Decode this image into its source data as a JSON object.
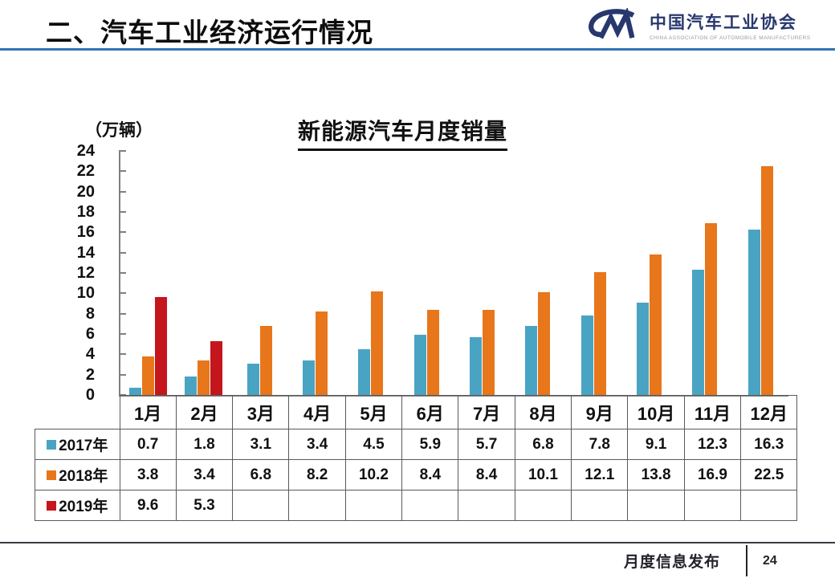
{
  "header": {
    "title": "二、汽车工业经济运行情况",
    "rule_color": "#2E74B5",
    "logo": {
      "mark": "CM",
      "org_cn": "中国汽车工业协会",
      "org_en": "CHINA ASSOCIATION OF AUTOMOBILE MANUFACTURERS",
      "color": "#28386E"
    }
  },
  "chart_data": {
    "type": "bar",
    "title": "新能源汽车月度销量",
    "unit_label": "（万辆）",
    "categories": [
      "1月",
      "2月",
      "3月",
      "4月",
      "5月",
      "6月",
      "7月",
      "8月",
      "9月",
      "10月",
      "11月",
      "12月"
    ],
    "series": [
      {
        "name": "2017年",
        "color": "#49A4C4",
        "values": [
          0.7,
          1.8,
          3.1,
          3.4,
          4.5,
          5.9,
          5.7,
          6.8,
          7.8,
          9.1,
          12.3,
          16.3
        ]
      },
      {
        "name": "2018年",
        "color": "#E8761B",
        "values": [
          3.8,
          3.4,
          6.8,
          8.2,
          10.2,
          8.4,
          8.4,
          10.1,
          12.1,
          13.8,
          16.9,
          22.5
        ]
      },
      {
        "name": "2019年",
        "color": "#C4161C",
        "values": [
          9.6,
          5.3,
          null,
          null,
          null,
          null,
          null,
          null,
          null,
          null,
          null,
          null
        ]
      }
    ],
    "ylim": [
      0,
      24
    ],
    "ytick_step": 2,
    "grid": false,
    "legend_position": "table-left",
    "axis_color": "#7F7F7F"
  },
  "footer": {
    "label": "月度信息发布",
    "page": "24"
  }
}
